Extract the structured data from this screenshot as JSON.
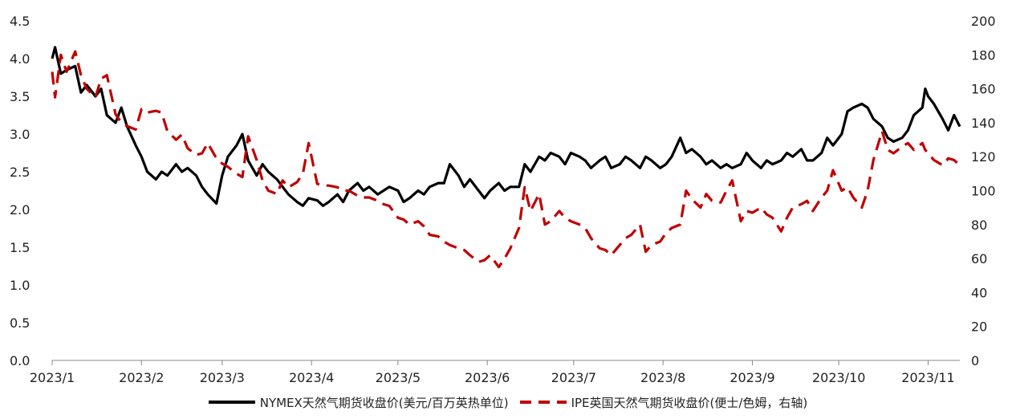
{
  "chart_data": {
    "type": "line",
    "title": "",
    "xlabel": "",
    "ylabel": "",
    "x_ticks": [
      "2023/1",
      "2023/2",
      "2023/3",
      "2023/4",
      "2023/5",
      "2023/6",
      "2023/7",
      "2023/8",
      "2023/9",
      "2023/10",
      "2023/11"
    ],
    "x_range": [
      "2023-01-01",
      "2023-11-12"
    ],
    "ylim_left": [
      0,
      4.5
    ],
    "yticks_left": [
      "0.0",
      "0.5",
      "1.0",
      "1.5",
      "2.0",
      "2.5",
      "3.0",
      "3.5",
      "4.0",
      "4.5"
    ],
    "ylim_right": [
      0,
      200
    ],
    "yticks_right": [
      "0",
      "20",
      "40",
      "60",
      "80",
      "100",
      "120",
      "140",
      "160",
      "180",
      "200"
    ],
    "grid": false,
    "legend_position": "bottom",
    "series": [
      {
        "name": "NYMEX天然气期货收盘价(美元/百万英热单位)",
        "axis": "left",
        "color": "#000000",
        "style": "solid",
        "points": [
          [
            "2023-01-01",
            4.0
          ],
          [
            "2023-01-02",
            4.15
          ],
          [
            "2023-01-04",
            3.8
          ],
          [
            "2023-01-06",
            3.85
          ],
          [
            "2023-01-09",
            3.9
          ],
          [
            "2023-01-11",
            3.55
          ],
          [
            "2023-01-13",
            3.65
          ],
          [
            "2023-01-16",
            3.5
          ],
          [
            "2023-01-18",
            3.6
          ],
          [
            "2023-01-20",
            3.25
          ],
          [
            "2023-01-23",
            3.15
          ],
          [
            "2023-01-25",
            3.35
          ],
          [
            "2023-01-27",
            3.1
          ],
          [
            "2023-01-30",
            2.85
          ],
          [
            "2023-02-01",
            2.7
          ],
          [
            "2023-02-03",
            2.5
          ],
          [
            "2023-02-06",
            2.4
          ],
          [
            "2023-02-08",
            2.5
          ],
          [
            "2023-02-10",
            2.45
          ],
          [
            "2023-02-13",
            2.6
          ],
          [
            "2023-02-15",
            2.5
          ],
          [
            "2023-02-17",
            2.55
          ],
          [
            "2023-02-20",
            2.45
          ],
          [
            "2023-02-22",
            2.3
          ],
          [
            "2023-02-24",
            2.2
          ],
          [
            "2023-02-27",
            2.08
          ],
          [
            "2023-03-01",
            2.45
          ],
          [
            "2023-03-03",
            2.7
          ],
          [
            "2023-03-06",
            2.85
          ],
          [
            "2023-03-08",
            3.0
          ],
          [
            "2023-03-10",
            2.65
          ],
          [
            "2023-03-13",
            2.45
          ],
          [
            "2023-03-15",
            2.6
          ],
          [
            "2023-03-17",
            2.5
          ],
          [
            "2023-03-20",
            2.4
          ],
          [
            "2023-03-22",
            2.3
          ],
          [
            "2023-03-24",
            2.2
          ],
          [
            "2023-03-27",
            2.1
          ],
          [
            "2023-03-29",
            2.05
          ],
          [
            "2023-03-31",
            2.15
          ],
          [
            "2023-04-03",
            2.12
          ],
          [
            "2023-04-05",
            2.05
          ],
          [
            "2023-04-07",
            2.1
          ],
          [
            "2023-04-10",
            2.2
          ],
          [
            "2023-04-12",
            2.1
          ],
          [
            "2023-04-14",
            2.25
          ],
          [
            "2023-04-17",
            2.35
          ],
          [
            "2023-04-19",
            2.25
          ],
          [
            "2023-04-21",
            2.3
          ],
          [
            "2023-04-24",
            2.2
          ],
          [
            "2023-04-26",
            2.25
          ],
          [
            "2023-04-28",
            2.3
          ],
          [
            "2023-05-01",
            2.25
          ],
          [
            "2023-05-03",
            2.1
          ],
          [
            "2023-05-05",
            2.15
          ],
          [
            "2023-05-08",
            2.25
          ],
          [
            "2023-05-10",
            2.2
          ],
          [
            "2023-05-12",
            2.3
          ],
          [
            "2023-05-15",
            2.35
          ],
          [
            "2023-05-17",
            2.35
          ],
          [
            "2023-05-19",
            2.6
          ],
          [
            "2023-05-22",
            2.45
          ],
          [
            "2023-05-24",
            2.3
          ],
          [
            "2023-05-26",
            2.4
          ],
          [
            "2023-05-29",
            2.25
          ],
          [
            "2023-05-31",
            2.15
          ],
          [
            "2023-06-02",
            2.25
          ],
          [
            "2023-06-05",
            2.35
          ],
          [
            "2023-06-07",
            2.25
          ],
          [
            "2023-06-09",
            2.3
          ],
          [
            "2023-06-12",
            2.3
          ],
          [
            "2023-06-14",
            2.6
          ],
          [
            "2023-06-16",
            2.5
          ],
          [
            "2023-06-19",
            2.7
          ],
          [
            "2023-06-21",
            2.65
          ],
          [
            "2023-06-23",
            2.75
          ],
          [
            "2023-06-26",
            2.7
          ],
          [
            "2023-06-28",
            2.6
          ],
          [
            "2023-06-30",
            2.75
          ],
          [
            "2023-07-03",
            2.7
          ],
          [
            "2023-07-05",
            2.65
          ],
          [
            "2023-07-07",
            2.55
          ],
          [
            "2023-07-10",
            2.65
          ],
          [
            "2023-07-12",
            2.7
          ],
          [
            "2023-07-14",
            2.55
          ],
          [
            "2023-07-17",
            2.6
          ],
          [
            "2023-07-19",
            2.7
          ],
          [
            "2023-07-21",
            2.65
          ],
          [
            "2023-07-24",
            2.55
          ],
          [
            "2023-07-26",
            2.7
          ],
          [
            "2023-07-28",
            2.65
          ],
          [
            "2023-07-31",
            2.55
          ],
          [
            "2023-08-02",
            2.6
          ],
          [
            "2023-08-04",
            2.7
          ],
          [
            "2023-08-07",
            2.95
          ],
          [
            "2023-08-09",
            2.75
          ],
          [
            "2023-08-11",
            2.8
          ],
          [
            "2023-08-14",
            2.7
          ],
          [
            "2023-08-16",
            2.6
          ],
          [
            "2023-08-18",
            2.65
          ],
          [
            "2023-08-21",
            2.55
          ],
          [
            "2023-08-23",
            2.6
          ],
          [
            "2023-08-25",
            2.55
          ],
          [
            "2023-08-28",
            2.6
          ],
          [
            "2023-08-30",
            2.75
          ],
          [
            "2023-09-01",
            2.65
          ],
          [
            "2023-09-04",
            2.55
          ],
          [
            "2023-09-06",
            2.65
          ],
          [
            "2023-09-08",
            2.6
          ],
          [
            "2023-09-11",
            2.65
          ],
          [
            "2023-09-13",
            2.75
          ],
          [
            "2023-09-15",
            2.7
          ],
          [
            "2023-09-18",
            2.8
          ],
          [
            "2023-09-20",
            2.65
          ],
          [
            "2023-09-22",
            2.65
          ],
          [
            "2023-09-25",
            2.75
          ],
          [
            "2023-09-27",
            2.95
          ],
          [
            "2023-09-29",
            2.85
          ],
          [
            "2023-10-02",
            3.0
          ],
          [
            "2023-10-04",
            3.3
          ],
          [
            "2023-10-06",
            3.35
          ],
          [
            "2023-10-09",
            3.4
          ],
          [
            "2023-10-11",
            3.35
          ],
          [
            "2023-10-13",
            3.2
          ],
          [
            "2023-10-16",
            3.1
          ],
          [
            "2023-10-18",
            2.95
          ],
          [
            "2023-10-20",
            2.9
          ],
          [
            "2023-10-23",
            2.95
          ],
          [
            "2023-10-25",
            3.05
          ],
          [
            "2023-10-27",
            3.25
          ],
          [
            "2023-10-30",
            3.35
          ],
          [
            "2023-10-31",
            3.6
          ],
          [
            "2023-11-01",
            3.5
          ],
          [
            "2023-11-03",
            3.4
          ],
          [
            "2023-11-06",
            3.2
          ],
          [
            "2023-11-08",
            3.05
          ],
          [
            "2023-11-10",
            3.25
          ],
          [
            "2023-11-12",
            3.1
          ]
        ]
      },
      {
        "name": "IPE英国天然气期货收盘价(便士/色姆，右轴)",
        "axis": "right",
        "color": "#c00000",
        "style": "dashed",
        "points": [
          [
            "2023-01-01",
            170
          ],
          [
            "2023-01-02",
            155
          ],
          [
            "2023-01-04",
            180
          ],
          [
            "2023-01-06",
            170
          ],
          [
            "2023-01-09",
            182
          ],
          [
            "2023-01-11",
            168
          ],
          [
            "2023-01-13",
            160
          ],
          [
            "2023-01-16",
            155
          ],
          [
            "2023-01-18",
            166
          ],
          [
            "2023-01-20",
            168
          ],
          [
            "2023-01-23",
            145
          ],
          [
            "2023-01-25",
            140
          ],
          [
            "2023-01-27",
            138
          ],
          [
            "2023-01-30",
            136
          ],
          [
            "2023-02-01",
            148
          ],
          [
            "2023-02-03",
            146
          ],
          [
            "2023-02-06",
            147
          ],
          [
            "2023-02-08",
            146
          ],
          [
            "2023-02-10",
            135
          ],
          [
            "2023-02-13",
            130
          ],
          [
            "2023-02-15",
            133
          ],
          [
            "2023-02-17",
            125
          ],
          [
            "2023-02-20",
            121
          ],
          [
            "2023-02-22",
            122
          ],
          [
            "2023-02-24",
            128
          ],
          [
            "2023-02-27",
            119
          ],
          [
            "2023-03-01",
            116
          ],
          [
            "2023-03-03",
            114
          ],
          [
            "2023-03-06",
            110
          ],
          [
            "2023-03-08",
            108
          ],
          [
            "2023-03-10",
            132
          ],
          [
            "2023-03-13",
            118
          ],
          [
            "2023-03-15",
            106
          ],
          [
            "2023-03-17",
            100
          ],
          [
            "2023-03-20",
            98
          ],
          [
            "2023-03-22",
            106
          ],
          [
            "2023-03-24",
            102
          ],
          [
            "2023-03-27",
            105
          ],
          [
            "2023-03-29",
            110
          ],
          [
            "2023-03-31",
            128
          ],
          [
            "2023-04-03",
            104
          ],
          [
            "2023-04-05",
            103
          ],
          [
            "2023-04-07",
            103
          ],
          [
            "2023-04-10",
            102
          ],
          [
            "2023-04-12",
            100
          ],
          [
            "2023-04-14",
            100
          ],
          [
            "2023-04-17",
            97
          ],
          [
            "2023-04-19",
            96
          ],
          [
            "2023-04-21",
            96
          ],
          [
            "2023-04-24",
            94
          ],
          [
            "2023-04-26",
            92
          ],
          [
            "2023-04-28",
            91
          ],
          [
            "2023-05-01",
            84
          ],
          [
            "2023-05-03",
            83
          ],
          [
            "2023-05-05",
            80
          ],
          [
            "2023-05-08",
            82
          ],
          [
            "2023-05-10",
            79
          ],
          [
            "2023-05-12",
            74
          ],
          [
            "2023-05-15",
            73
          ],
          [
            "2023-05-17",
            70
          ],
          [
            "2023-05-19",
            68
          ],
          [
            "2023-05-22",
            66
          ],
          [
            "2023-05-24",
            65
          ],
          [
            "2023-05-26",
            62
          ],
          [
            "2023-05-29",
            58
          ],
          [
            "2023-05-31",
            59
          ],
          [
            "2023-06-02",
            62
          ],
          [
            "2023-06-05",
            55
          ],
          [
            "2023-06-07",
            60
          ],
          [
            "2023-06-09",
            66
          ],
          [
            "2023-06-12",
            78
          ],
          [
            "2023-06-14",
            102
          ],
          [
            "2023-06-16",
            88
          ],
          [
            "2023-06-19",
            98
          ],
          [
            "2023-06-21",
            80
          ],
          [
            "2023-06-23",
            82
          ],
          [
            "2023-06-26",
            88
          ],
          [
            "2023-06-28",
            84
          ],
          [
            "2023-06-30",
            82
          ],
          [
            "2023-07-03",
            80
          ],
          [
            "2023-07-05",
            78
          ],
          [
            "2023-07-07",
            72
          ],
          [
            "2023-07-10",
            66
          ],
          [
            "2023-07-12",
            65
          ],
          [
            "2023-07-14",
            62
          ],
          [
            "2023-07-17",
            68
          ],
          [
            "2023-07-19",
            72
          ],
          [
            "2023-07-21",
            74
          ],
          [
            "2023-07-24",
            80
          ],
          [
            "2023-07-26",
            64
          ],
          [
            "2023-07-28",
            68
          ],
          [
            "2023-07-31",
            70
          ],
          [
            "2023-08-02",
            75
          ],
          [
            "2023-08-04",
            78
          ],
          [
            "2023-08-07",
            80
          ],
          [
            "2023-08-09",
            100
          ],
          [
            "2023-08-11",
            95
          ],
          [
            "2023-08-14",
            90
          ],
          [
            "2023-08-16",
            98
          ],
          [
            "2023-08-18",
            94
          ],
          [
            "2023-08-21",
            93
          ],
          [
            "2023-08-23",
            100
          ],
          [
            "2023-08-25",
            106
          ],
          [
            "2023-08-28",
            82
          ],
          [
            "2023-08-30",
            88
          ],
          [
            "2023-09-01",
            87
          ],
          [
            "2023-09-04",
            90
          ],
          [
            "2023-09-06",
            86
          ],
          [
            "2023-09-08",
            84
          ],
          [
            "2023-09-11",
            76
          ],
          [
            "2023-09-13",
            84
          ],
          [
            "2023-09-15",
            90
          ],
          [
            "2023-09-18",
            92
          ],
          [
            "2023-09-20",
            94
          ],
          [
            "2023-09-22",
            88
          ],
          [
            "2023-09-25",
            96
          ],
          [
            "2023-09-27",
            100
          ],
          [
            "2023-09-29",
            112
          ],
          [
            "2023-10-02",
            100
          ],
          [
            "2023-10-04",
            102
          ],
          [
            "2023-10-06",
            96
          ],
          [
            "2023-10-09",
            90
          ],
          [
            "2023-10-11",
            100
          ],
          [
            "2023-10-13",
            118
          ],
          [
            "2023-10-16",
            135
          ],
          [
            "2023-10-18",
            124
          ],
          [
            "2023-10-20",
            122
          ],
          [
            "2023-10-23",
            126
          ],
          [
            "2023-10-25",
            128
          ],
          [
            "2023-10-27",
            124
          ],
          [
            "2023-10-30",
            128
          ],
          [
            "2023-10-31",
            124
          ],
          [
            "2023-11-01",
            122
          ],
          [
            "2023-11-03",
            118
          ],
          [
            "2023-11-06",
            115
          ],
          [
            "2023-11-08",
            119
          ],
          [
            "2023-11-10",
            118
          ],
          [
            "2023-11-12",
            115
          ]
        ]
      }
    ]
  }
}
